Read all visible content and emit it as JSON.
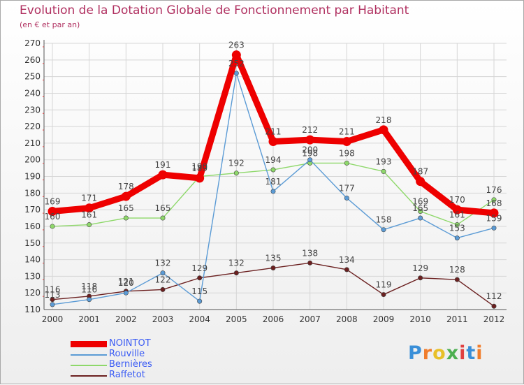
{
  "header": {
    "title": "Evolution de la Dotation Globale de Fonctionnement par Habitant",
    "subtitle": "(en € et par an)"
  },
  "logo": {
    "letters": [
      "P",
      "r",
      "o",
      "x",
      "i",
      "t",
      "i"
    ],
    "colors": [
      "#3a8fd8",
      "#f07d2c",
      "#e8c028",
      "#4caf50",
      "#e04040",
      "#3a8fd8",
      "#f07d2c"
    ]
  },
  "chart_data": {
    "type": "line",
    "x": [
      "2000",
      "2001",
      "2002",
      "2003",
      "2004",
      "2005",
      "2006",
      "2007",
      "2008",
      "2009",
      "2010",
      "2011",
      "2012"
    ],
    "ylim": [
      110,
      270
    ],
    "yticks": [
      110,
      120,
      130,
      140,
      150,
      160,
      170,
      180,
      190,
      200,
      210,
      220,
      230,
      240,
      250,
      260,
      270
    ],
    "grid": true,
    "legend_position": "bottom-left",
    "series": [
      {
        "name": "NOINTOT",
        "color": "#ee0000",
        "values": [
          169,
          171,
          178,
          191,
          189,
          263,
          211,
          212,
          211,
          218,
          187,
          170,
          168
        ]
      },
      {
        "name": "Rouville",
        "color": "#5b9bd5",
        "values": [
          113,
          116,
          120,
          132,
          115,
          252,
          181,
          200,
          177,
          158,
          165,
          153,
          159
        ]
      },
      {
        "name": "Bernières",
        "color": "#8ed86a",
        "values": [
          160,
          161,
          165,
          165,
          190,
          192,
          194,
          198,
          198,
          193,
          169,
          161,
          176
        ]
      },
      {
        "name": "Raffetot",
        "color": "#6b2020",
        "values": [
          116,
          118,
          121,
          122,
          129,
          132,
          135,
          138,
          134,
          119,
          129,
          128,
          112
        ]
      }
    ],
    "data_labels": [
      {
        "series": "NOINTOT",
        "labels": [
          "169",
          "171",
          "178",
          "191",
          "189",
          "263",
          "211",
          "212",
          "211",
          "218",
          "187",
          "170",
          "168"
        ]
      },
      {
        "series": "Rouville",
        "labels": [
          "113",
          "116",
          "120",
          "132",
          "115",
          "252",
          "181",
          "200",
          "177",
          "158",
          "165",
          "153",
          "159"
        ]
      },
      {
        "series": "Bernières",
        "labels": [
          "160",
          "161",
          "165",
          "165",
          "190",
          "192",
          "194",
          "198",
          "198",
          "193",
          "169",
          "161",
          "176"
        ]
      },
      {
        "series": "Raffetot",
        "labels": [
          "116",
          "118",
          "121",
          "122",
          "129",
          "132",
          "135",
          "138",
          "134",
          "119",
          "129",
          "128",
          "112"
        ]
      }
    ]
  }
}
